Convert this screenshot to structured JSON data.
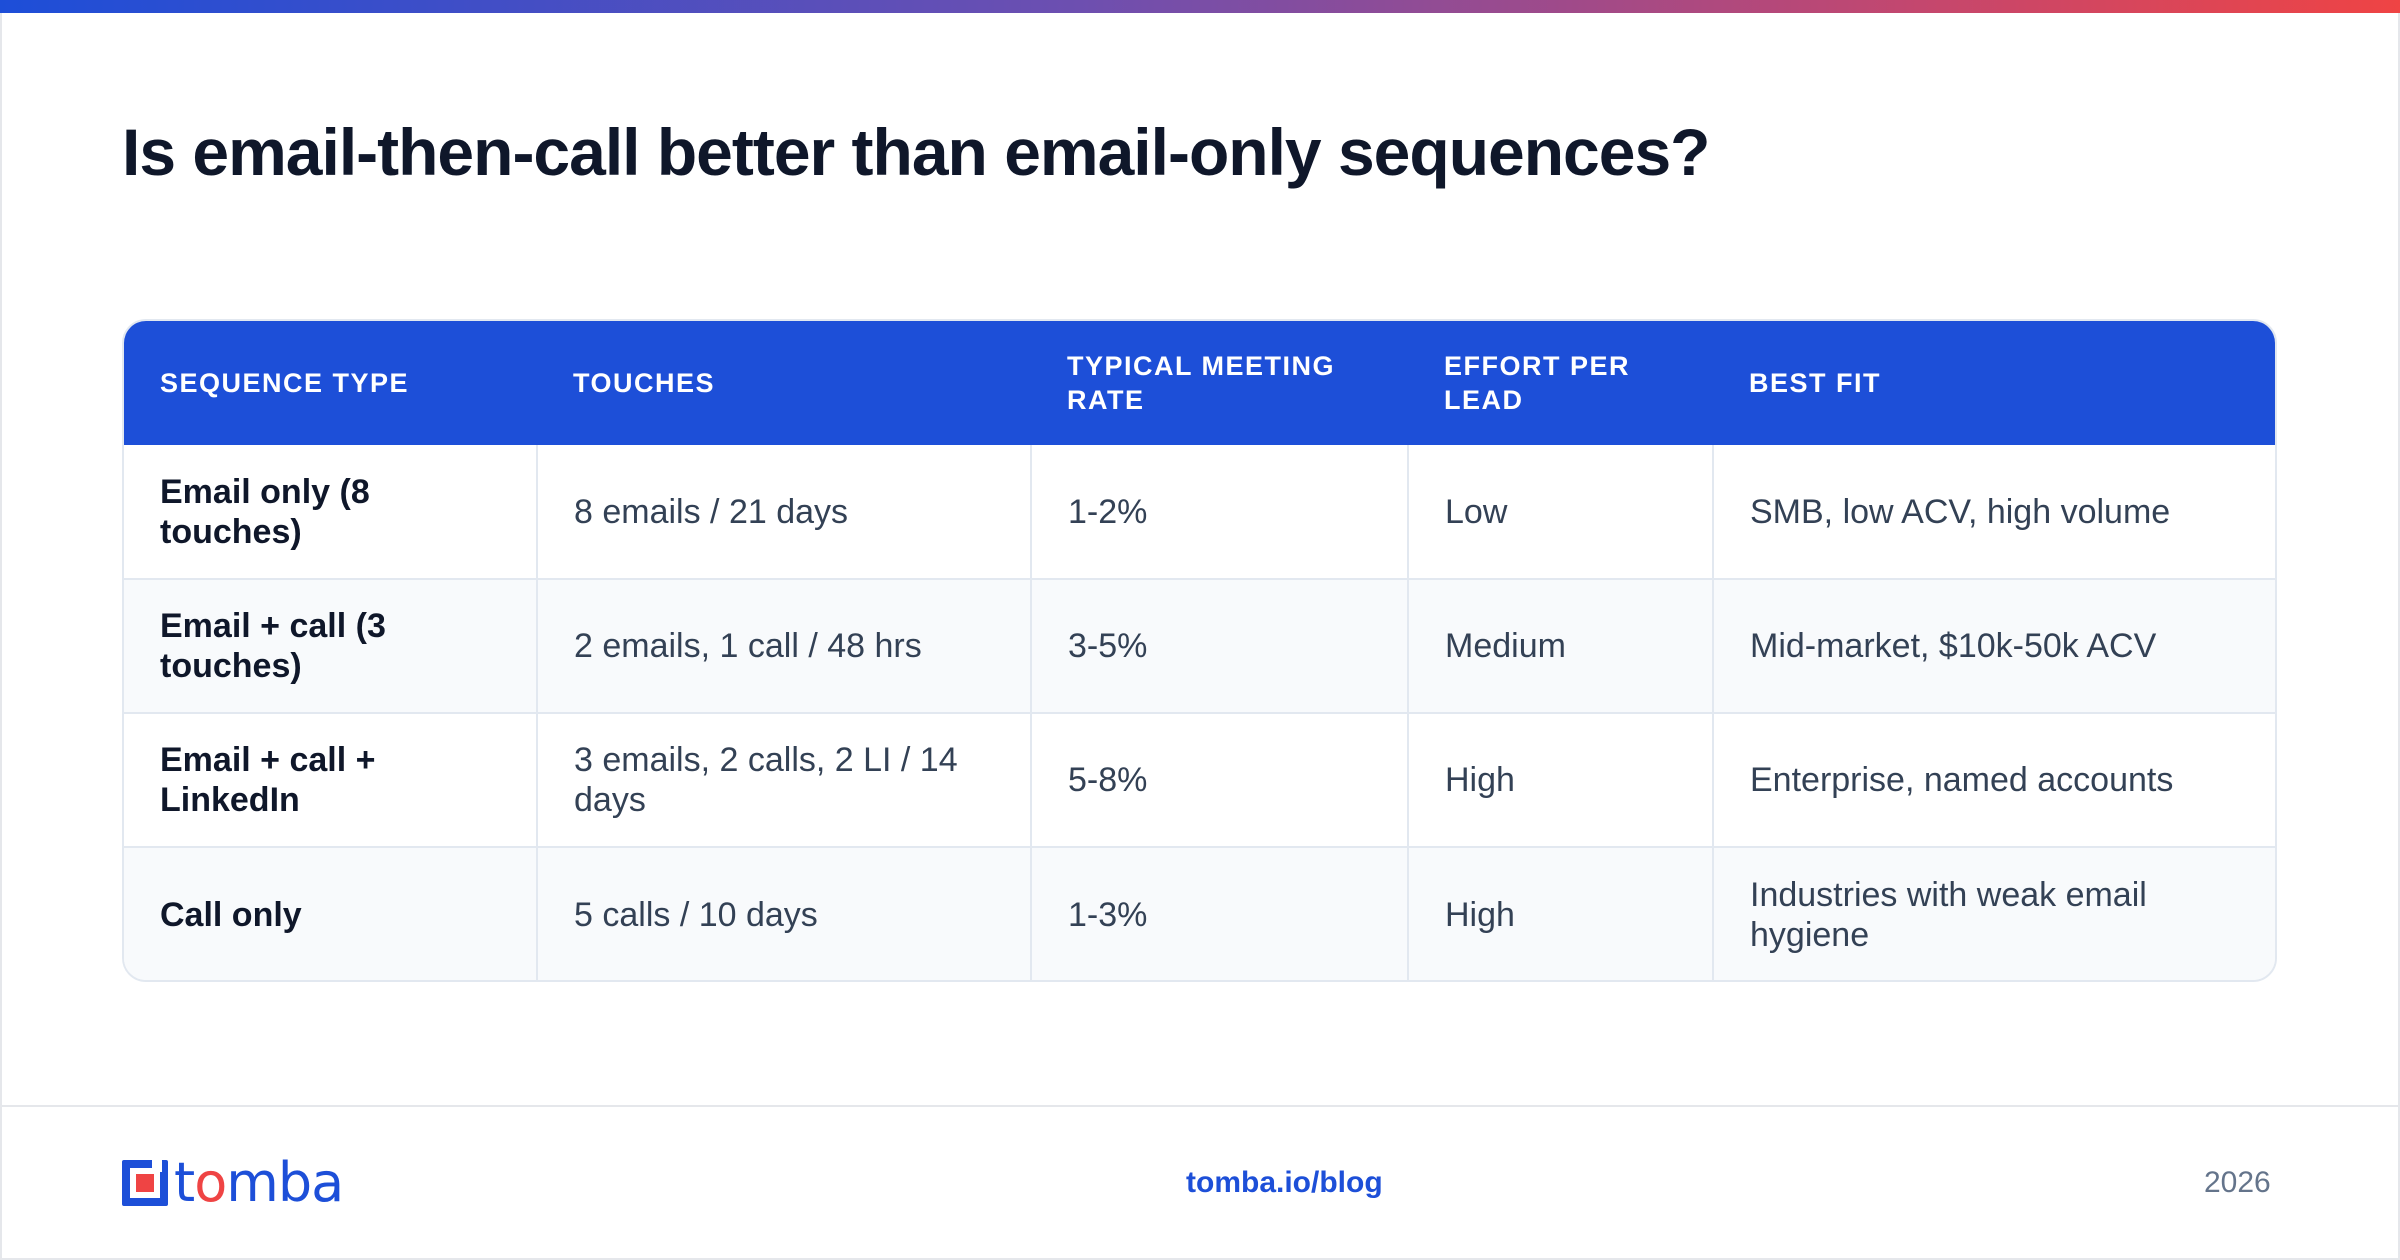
{
  "title": "Is email-then-call better than email-only sequences?",
  "table": {
    "headers": [
      "SEQUENCE TYPE",
      "TOUCHES",
      "TYPICAL MEETING RATE",
      "EFFORT PER LEAD",
      "BEST FIT"
    ],
    "rows": [
      [
        "Email only (8 touches)",
        "8 emails / 21 days",
        "1-2%",
        "Low",
        "SMB, low ACV, high volume"
      ],
      [
        "Email + call (3 touches)",
        "2 emails, 1 call / 48 hrs",
        "3-5%",
        "Medium",
        "Mid-market, $10k-50k ACV"
      ],
      [
        "Email + call + LinkedIn",
        "3 emails, 2 calls, 2 LI / 14 days",
        "5-8%",
        "High",
        "Enterprise, named accounts"
      ],
      [
        "Call only",
        "5 calls / 10 days",
        "1-3%",
        "High",
        "Industries with weak email hygiene"
      ]
    ]
  },
  "footer": {
    "logo": "tomba",
    "link": "tomba.io/blog",
    "year": "2026"
  },
  "colors": {
    "accent": "#1d4fd8",
    "brand_red": "#ef4444",
    "text_dark": "#0f172a",
    "text_body": "#334155"
  }
}
